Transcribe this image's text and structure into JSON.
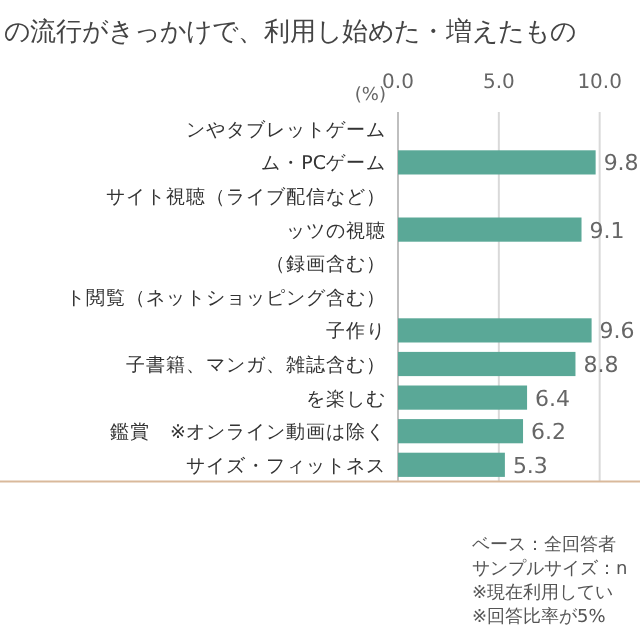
{
  "chart_data": {
    "type": "bar",
    "orientation": "horizontal",
    "title": "の流行がきっかけで、利用し始めた・増えたもの",
    "xlabel": "(%)",
    "categories": [
      "ンやタブレットゲーム",
      "ム・PCゲーム",
      "サイト視聴（ライブ配信など）",
      "ッツの視聴",
      "（録画含む）",
      "ト閲覧（ネットショッピング含む）",
      "子作り",
      "子書籍、マンガ、雑誌含む）",
      "を楽しむ",
      "鑑賞　※オンライン動画は除く",
      "サイズ・フィットネス"
    ],
    "values": [
      null,
      9.8,
      null,
      9.1,
      null,
      null,
      9.6,
      8.8,
      6.4,
      6.2,
      5.3
    ],
    "value_labels": [
      null,
      "9.8",
      null,
      "9.1",
      null,
      null,
      "9.6",
      "8.8",
      "6.4",
      "6.2",
      "5.3"
    ],
    "color": "#5aa897",
    "xlim": [
      0,
      12
    ],
    "xticks": [
      {
        "value": 0,
        "label": "0.0"
      },
      {
        "value": 5,
        "label": "5.0"
      },
      {
        "value": 10,
        "label": "10.0"
      }
    ],
    "grid": "x",
    "annotations": [
      "ベース：全回答者",
      "サンプルサイズ：n",
      "※現在利用してい",
      "※回答比率が5%"
    ]
  }
}
